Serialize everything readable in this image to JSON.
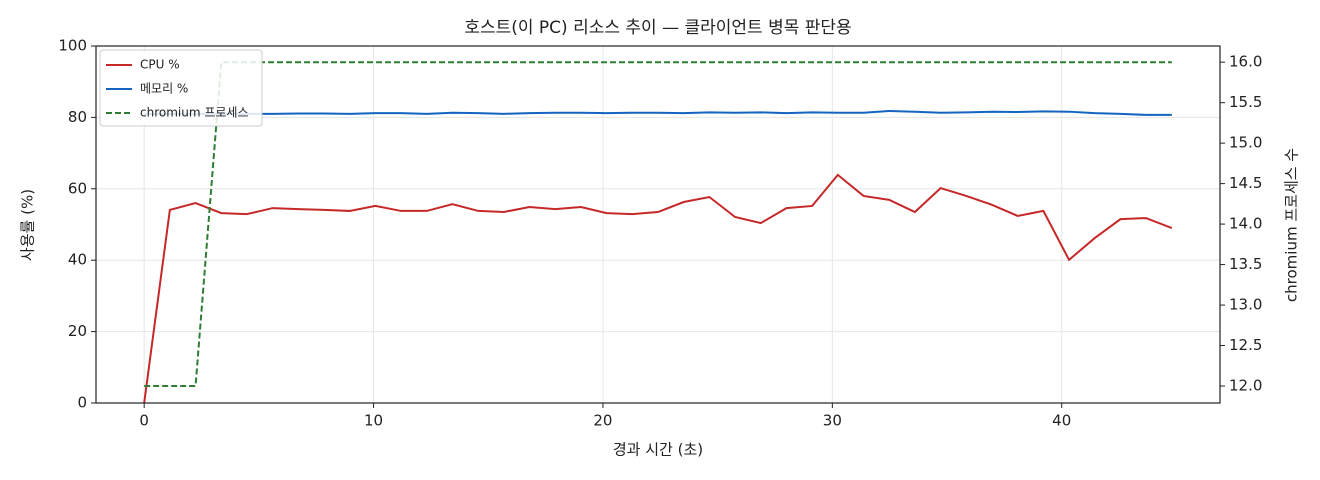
{
  "chart_data": {
    "type": "line",
    "title": "호스트(이 PC) 리소스 추이 — 클라이언트 병목 판단용",
    "x_label": "경과 시간 (초)",
    "y_label": "사용률 (%)",
    "y2_label": "chromium 프로세스 수",
    "x": [
      0,
      1.12,
      2.24,
      3.36,
      4.48,
      5.6,
      6.72,
      7.84,
      8.96,
      10.08,
      11.2,
      12.32,
      13.44,
      14.56,
      15.68,
      16.8,
      17.92,
      19.04,
      20.16,
      21.28,
      22.4,
      23.52,
      24.64,
      25.76,
      26.88,
      28.0,
      29.12,
      30.24,
      31.36,
      32.48,
      33.6,
      34.72,
      35.84,
      36.96,
      38.08,
      39.2,
      40.32,
      41.44,
      42.56,
      43.68,
      44.8
    ],
    "series": [
      {
        "name": "CPU %",
        "color": "#c62828",
        "style": "solid",
        "values": [
          0,
          54.1,
          56.0,
          53.2,
          52.9,
          54.6,
          54.3,
          54.1,
          53.8,
          55.2,
          53.8,
          53.8,
          55.7,
          53.8,
          53.5,
          54.9,
          54.3,
          54.9,
          53.2,
          52.9,
          53.5,
          56.3,
          57.7,
          52.1,
          50.4,
          54.6,
          55.2,
          63.9,
          58.0,
          56.9,
          53.5,
          60.2,
          58.0,
          55.5,
          52.4,
          53.8,
          40.1,
          46.2,
          51.5,
          51.8,
          49.0
        ]
      },
      {
        "name": "메모리 %",
        "color": "#1565c0",
        "style": "solid",
        "values": [
          81.0,
          81.0,
          81.0,
          81.0,
          81.0,
          81.0,
          81.1,
          81.1,
          81.0,
          81.2,
          81.2,
          81.0,
          81.3,
          81.2,
          81.0,
          81.2,
          81.3,
          81.3,
          81.2,
          81.3,
          81.3,
          81.2,
          81.4,
          81.3,
          81.4,
          81.2,
          81.4,
          81.3,
          81.3,
          81.8,
          81.6,
          81.3,
          81.4,
          81.6,
          81.5,
          81.7,
          81.6,
          81.2,
          81.0,
          80.7,
          80.7
        ]
      },
      {
        "name": "chromium 프로세스",
        "color": "#2e7d32",
        "style": "dashed",
        "axis": "y2",
        "values": [
          12,
          12,
          12,
          16,
          16,
          16,
          16,
          16,
          16,
          16,
          16,
          16,
          16,
          16,
          16,
          16,
          16,
          16,
          16,
          16,
          16,
          16,
          16,
          16,
          16,
          16,
          16,
          16,
          16,
          16,
          16,
          16,
          16,
          16,
          16,
          16,
          16,
          16,
          16,
          16,
          16
        ]
      }
    ],
    "xlim": [
      -2.1,
      46.9
    ],
    "xticks": [
      0,
      10,
      20,
      30,
      40
    ],
    "ylim": [
      0,
      100
    ],
    "yticks": [
      0,
      20,
      40,
      60,
      80,
      100
    ],
    "y2lim": [
      11.79,
      16.2
    ],
    "y2ticks": [
      {
        "value": 12,
        "label": "12.0"
      },
      12.5,
      {
        "value": 13,
        "label": "13.0"
      },
      13.5,
      {
        "value": 14,
        "label": "14.0"
      },
      14.5,
      {
        "value": 15,
        "label": "15.0"
      },
      15.5,
      {
        "value": 16,
        "label": "16.0"
      }
    ],
    "grid": true,
    "legend": "upper-left"
  }
}
